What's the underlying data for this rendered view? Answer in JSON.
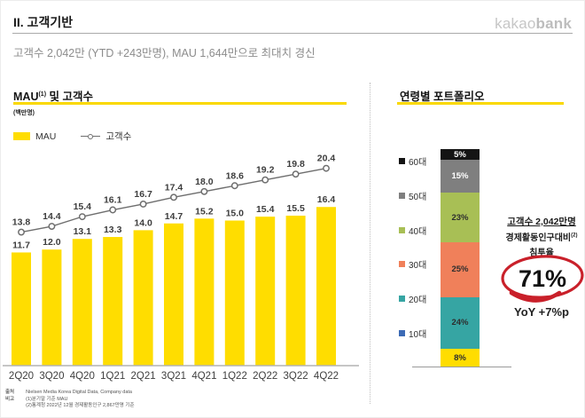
{
  "header": {
    "section_title": "II. 고객기반",
    "logo_kakao": "kakao",
    "logo_bank": "bank",
    "subtitle": "고객수 2,042만 (YTD +243만명), MAU 1,644만으로 최대치 경신"
  },
  "left_panel": {
    "title_pre": "MAU",
    "title_sup": "(1)",
    "title_post": " 및 고객수",
    "unit": "(백만명)"
  },
  "right_panel": {
    "title": "연령별 포트폴리오",
    "annotation": {
      "line1": "고객수 2,042만명",
      "line2": "경제활동인구대비",
      "line2_sup": "(2)",
      "line3": "침투율",
      "highlight": "71%",
      "yoy": "YoY +7%p",
      "circle_color": "#c9202a"
    }
  },
  "chart_data": [
    {
      "type": "bar",
      "title": "MAU(1) 및 고객수",
      "unit": "백만명",
      "categories": [
        "2Q20",
        "3Q20",
        "4Q20",
        "1Q21",
        "2Q21",
        "3Q21",
        "4Q21",
        "1Q22",
        "2Q22",
        "3Q22",
        "4Q22"
      ],
      "series": [
        {
          "name": "MAU",
          "type": "bar",
          "color": "#ffdd00",
          "values": [
            11.7,
            12.0,
            13.1,
            13.3,
            14.0,
            14.7,
            15.2,
            15.0,
            15.4,
            15.5,
            16.4
          ]
        },
        {
          "name": "고객수",
          "type": "line",
          "color": "#6e6e6e",
          "values": [
            13.8,
            14.4,
            15.4,
            16.1,
            16.7,
            17.4,
            18.0,
            18.6,
            19.2,
            19.8,
            20.4
          ]
        }
      ],
      "ylim": [
        0,
        22
      ],
      "grid": false,
      "legend_position": "top-left",
      "label_color": "#3d3d3d",
      "axis_color": "#b3b3b3"
    },
    {
      "type": "bar",
      "subtype": "stacked",
      "title": "연령별 포트폴리오",
      "segments_top_to_bottom": [
        {
          "label": "60대",
          "value": 5,
          "bar_color": "#141414",
          "legend_color": "#141414",
          "label_color": "#ffffff"
        },
        {
          "label": "50대",
          "value": 15,
          "bar_color": "#7f7f7f",
          "legend_color": "#7f7f7f",
          "label_color": "#ffffff"
        },
        {
          "label": "40대",
          "value": 23,
          "bar_color": "#a8bf55",
          "legend_color": "#a8bf55",
          "label_color": "#2e2e2e"
        },
        {
          "label": "30대",
          "value": 25,
          "bar_color": "#f0805a",
          "legend_color": "#f0805a",
          "label_color": "#2e2e2e"
        },
        {
          "label": "20대",
          "value": 24,
          "bar_color": "#36a5a3",
          "legend_color": "#36a5a3",
          "label_color": "#2e2e2e"
        },
        {
          "label": "10대",
          "value": 8,
          "bar_color": "#ffdd00",
          "legend_color": "#3c6ab5",
          "label_color": "#2e2e2e"
        }
      ],
      "unit": "%"
    }
  ],
  "footer": {
    "source_label": "출처",
    "note_label": "비고",
    "source": "Nielsen Media Korea Digital Data, Company data",
    "note1": "(1)분기말 기준 MAU",
    "note2": "(2)통계청 2022년 12월 경제활동인구 2,867만명 기준"
  }
}
